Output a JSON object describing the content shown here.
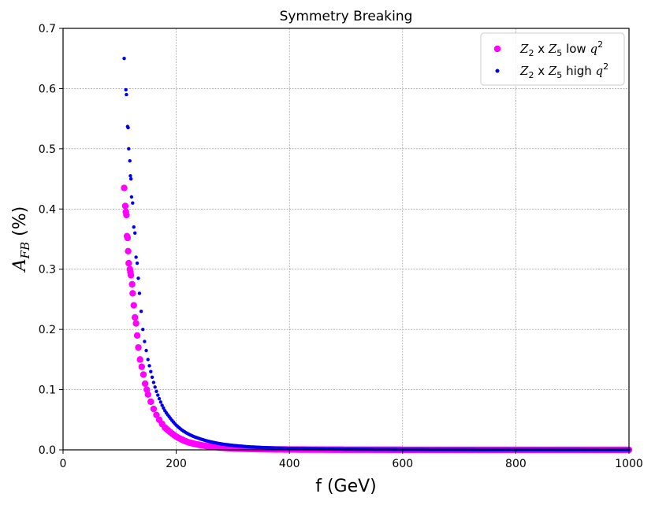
{
  "chart_data": {
    "type": "scatter",
    "title": "Symmetry Breaking",
    "xlabel": "f (GeV)",
    "ylabel": {
      "base": "A",
      "sub": "FB",
      "unit": " (%)"
    },
    "xlim": [
      0,
      1000
    ],
    "ylim": [
      0,
      0.7
    ],
    "xticks": [
      0,
      200,
      400,
      600,
      800,
      1000
    ],
    "yticks": [
      0.0,
      0.1,
      0.2,
      0.3,
      0.4,
      0.5,
      0.6,
      0.7
    ],
    "xtick_labels": [
      "0",
      "200",
      "400",
      "600",
      "800",
      "1000"
    ],
    "ytick_labels": [
      "0.0",
      "0.1",
      "0.2",
      "0.3",
      "0.4",
      "0.5",
      "0.6",
      "0.7"
    ],
    "grid": true,
    "legend_position": "top-right",
    "series": [
      {
        "name": "Z2 x Z5 low q^2",
        "label_parts": {
          "z1": "Z",
          "s1": "2",
          "mid": " x ",
          "z2": "Z",
          "s2": "5",
          "tail": " low ",
          "q": "q",
          "sup": "2"
        },
        "color": "#ff00ff",
        "marker": "large",
        "x": [
          108,
          110,
          111,
          112,
          113,
          114,
          115,
          116,
          118,
          119,
          120,
          122,
          123,
          125,
          127,
          129,
          131,
          133,
          136,
          139,
          142,
          145,
          148,
          150,
          155,
          160,
          165,
          170,
          175,
          180,
          190,
          200,
          210,
          220,
          230,
          240,
          250,
          260,
          270,
          280,
          290,
          300,
          310,
          320,
          330,
          340,
          350,
          375,
          400,
          450,
          500,
          550,
          600,
          650,
          700,
          750,
          800,
          850,
          900,
          950,
          1000
        ],
        "y": [
          0.435,
          0.405,
          0.395,
          0.39,
          0.355,
          0.352,
          0.33,
          0.31,
          0.3,
          0.295,
          0.29,
          0.275,
          0.26,
          0.24,
          0.22,
          0.21,
          0.19,
          0.17,
          0.15,
          0.138,
          0.125,
          0.11,
          0.1,
          0.092,
          0.08,
          0.068,
          0.058,
          0.05,
          0.043,
          0.037,
          0.029,
          0.022,
          0.017,
          0.013,
          0.0105,
          0.0085,
          0.0068,
          0.0055,
          0.0045,
          0.0037,
          0.003,
          0.0025,
          0.0021,
          0.0018,
          0.0015,
          0.0013,
          0.0011,
          0.0008,
          0.0006,
          0.0004,
          0.0003,
          0.0002,
          0.00015,
          0.00012,
          0.0001,
          8e-05,
          7e-05,
          6e-05,
          5e-05,
          4e-05,
          4e-05
        ]
      },
      {
        "name": "Z2 x Z5 high q^2",
        "label_parts": {
          "z1": "Z",
          "s1": "2",
          "mid": " x ",
          "z2": "Z",
          "s2": "5",
          "tail": " high ",
          "q": "q",
          "sup": "2"
        },
        "color": "#0000ee",
        "marker": "small",
        "x": [
          108,
          111,
          112,
          114,
          115,
          116,
          118,
          119,
          120,
          121,
          123,
          125,
          127,
          129,
          131,
          133,
          135,
          138,
          141,
          144,
          147,
          150,
          155,
          160,
          165,
          170,
          175,
          180,
          190,
          200,
          210,
          220,
          230,
          240,
          250,
          260,
          270,
          280,
          290,
          300,
          310,
          320,
          330,
          340,
          350,
          375,
          400,
          450,
          500,
          550,
          600,
          650,
          700,
          750,
          800,
          850,
          900,
          950,
          1000
        ],
        "y": [
          0.65,
          0.598,
          0.59,
          0.537,
          0.535,
          0.5,
          0.48,
          0.455,
          0.45,
          0.42,
          0.41,
          0.37,
          0.36,
          0.32,
          0.31,
          0.285,
          0.26,
          0.23,
          0.2,
          0.18,
          0.165,
          0.15,
          0.13,
          0.112,
          0.097,
          0.085,
          0.074,
          0.065,
          0.052,
          0.041,
          0.033,
          0.027,
          0.0225,
          0.019,
          0.016,
          0.0135,
          0.0115,
          0.0098,
          0.0085,
          0.0074,
          0.0065,
          0.0057,
          0.005,
          0.0045,
          0.004,
          0.003,
          0.0024,
          0.0016,
          0.0011,
          0.0008,
          0.0006,
          0.00045,
          0.00035,
          0.00028,
          0.00023,
          0.00019,
          0.00016,
          0.00013,
          0.00011
        ]
      }
    ]
  }
}
